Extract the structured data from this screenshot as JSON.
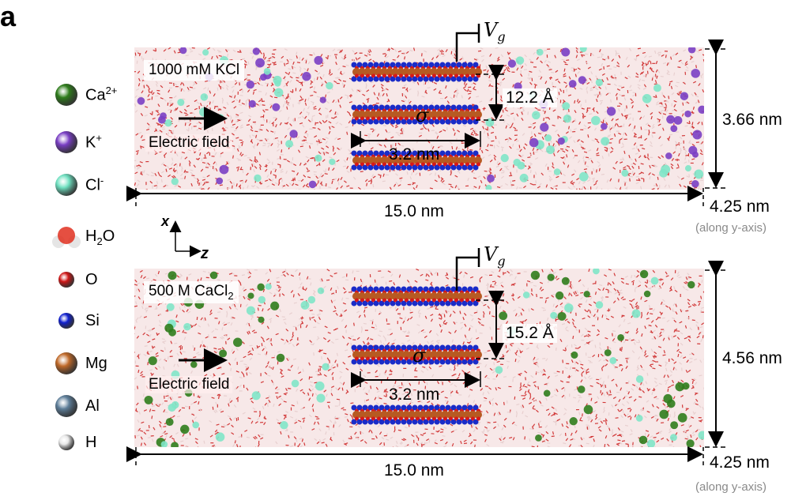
{
  "panel_label": "a",
  "legend": [
    {
      "name": "calcium-ion",
      "label_main": "Ca",
      "label_sup": "2+",
      "label_sub": "",
      "color": "#2f7d1c"
    },
    {
      "name": "potassium-ion",
      "label_main": "K",
      "label_sup": "+",
      "label_sub": "",
      "color": "#7a3fc4"
    },
    {
      "name": "chloride-ion",
      "label_main": "Cl",
      "label_sup": "-",
      "label_sub": "",
      "color": "#6fe0c0"
    },
    {
      "name": "water",
      "label_main": "H",
      "label_sup": "",
      "label_sub": "2",
      "label_tail": "O",
      "color": "#e03020"
    },
    {
      "name": "oxygen",
      "label_main": "O",
      "label_sup": "",
      "label_sub": "",
      "color": "#d01818"
    },
    {
      "name": "silicon",
      "label_main": "Si",
      "label_sup": "",
      "label_sub": "",
      "color": "#1020d0"
    },
    {
      "name": "magnesium",
      "label_main": "Mg",
      "label_sup": "",
      "label_sub": "",
      "color": "#c06a2a"
    },
    {
      "name": "aluminium",
      "label_main": "Al",
      "label_sup": "",
      "label_sub": "",
      "color": "#5f7f9a"
    },
    {
      "name": "hydrogen",
      "label_main": "H",
      "label_sup": "",
      "label_sub": "",
      "color": "#e8e8e8"
    }
  ],
  "axes": {
    "x": "x",
    "z": "z"
  },
  "top_panel": {
    "solution_label": "1000 mM KCl",
    "field_label": "Electric field",
    "gate_label": "V",
    "gate_sub": "g",
    "sigma": "σ",
    "interlayer": "12.2 Å",
    "channel_length": "3.2 nm",
    "height": "3.66 nm",
    "length": "15.0 nm",
    "depth": "4.25 nm",
    "depth_note": "(along y-axis)",
    "ion_color": "#7a3fc4"
  },
  "bottom_panel": {
    "solution_label_main": "500 M CaCl",
    "solution_label_sub": "2",
    "field_label": "Electric field",
    "gate_label": "V",
    "gate_sub": "g",
    "sigma": "σ",
    "interlayer": "15.2 Å",
    "channel_length": "3.2 nm",
    "height": "4.56 nm",
    "length": "15.0 nm",
    "depth": "4.25 nm",
    "depth_note": "(along y-axis)",
    "ion_color": "#2f7d1c"
  }
}
